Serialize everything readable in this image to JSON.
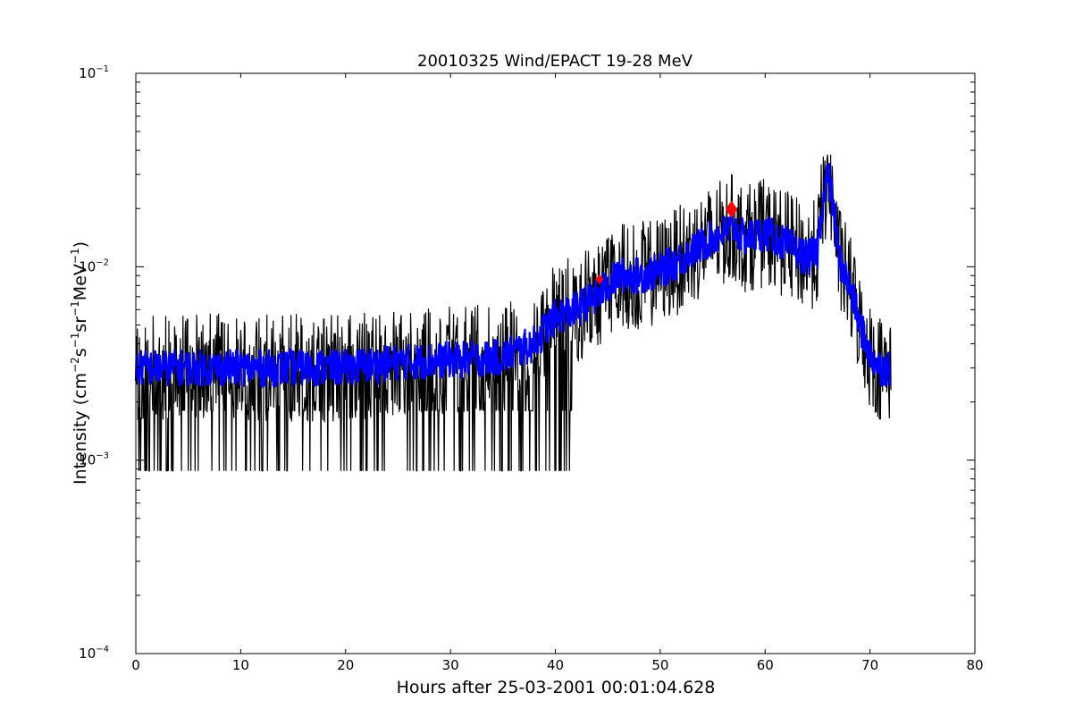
{
  "chart_data": {
    "type": "line",
    "title": "20010325 Wind/EPACT 19-28 MeV",
    "xlabel": "Hours after 25-03-2001 00:01:04.628",
    "ylabel_parts": {
      "prefix": "Intensity (cm",
      "exp1": "−2",
      "mid1": "s",
      "exp2": "−1",
      "mid2": "sr",
      "exp3": "−1",
      "mid3": "MeV",
      "exp4": "−1",
      "suffix": ")"
    },
    "xlim": [
      0,
      80
    ],
    "ylim": [
      0.0001,
      0.1
    ],
    "yscale": "log",
    "grid": false,
    "x_ticks": [
      {
        "value": 0,
        "label": "0"
      },
      {
        "value": 10,
        "label": "10"
      },
      {
        "value": 20,
        "label": "20"
      },
      {
        "value": 30,
        "label": "30"
      },
      {
        "value": 40,
        "label": "40"
      },
      {
        "value": 50,
        "label": "50"
      },
      {
        "value": 60,
        "label": "60"
      },
      {
        "value": 70,
        "label": "70"
      },
      {
        "value": 80,
        "label": "80"
      }
    ],
    "y_ticks": [
      {
        "value": 0.0001,
        "base": "10",
        "exp": "−4"
      },
      {
        "value": 0.001,
        "base": "10",
        "exp": "−3"
      },
      {
        "value": 0.01,
        "base": "10",
        "exp": "−2"
      },
      {
        "value": 0.1,
        "base": "10",
        "exp": "−1"
      }
    ],
    "series": [
      {
        "color": "#000000",
        "trend_hours": [
          0,
          5,
          10,
          15,
          20,
          25,
          30,
          35,
          38,
          40,
          42,
          44,
          46,
          48,
          50,
          52,
          54,
          56,
          57,
          58,
          60,
          62,
          64,
          65,
          66,
          66.5,
          67,
          68,
          69,
          70,
          71,
          72
        ],
        "trend_intensity": [
          0.003,
          0.003,
          0.003,
          0.003,
          0.003,
          0.0032,
          0.0033,
          0.0034,
          0.004,
          0.0055,
          0.006,
          0.007,
          0.009,
          0.009,
          0.0095,
          0.011,
          0.013,
          0.015,
          0.016,
          0.014,
          0.015,
          0.013,
          0.011,
          0.012,
          0.03,
          0.02,
          0.011,
          0.008,
          0.005,
          0.0035,
          0.003,
          0.003
        ]
      },
      {
        "color": "#0000ff",
        "trend_hours": [
          0,
          5,
          10,
          15,
          20,
          25,
          30,
          35,
          38,
          40,
          42,
          44,
          46,
          48,
          50,
          52,
          54,
          56,
          57,
          58,
          60,
          62,
          64,
          65,
          66,
          66.5,
          67,
          68,
          69,
          70,
          71,
          72
        ],
        "trend_intensity": [
          0.003,
          0.003,
          0.003,
          0.003,
          0.003,
          0.0032,
          0.0033,
          0.0034,
          0.004,
          0.0055,
          0.006,
          0.007,
          0.009,
          0.009,
          0.0095,
          0.011,
          0.013,
          0.015,
          0.016,
          0.014,
          0.015,
          0.013,
          0.011,
          0.012,
          0.03,
          0.02,
          0.011,
          0.008,
          0.005,
          0.0035,
          0.003,
          0.003
        ]
      }
    ],
    "markers": [
      {
        "x": 44.2,
        "y": 0.0086,
        "color": "#ff0000",
        "size": "small"
      },
      {
        "x": 56.8,
        "y": 0.0198,
        "color": "#ff0000",
        "size": "large"
      }
    ]
  }
}
